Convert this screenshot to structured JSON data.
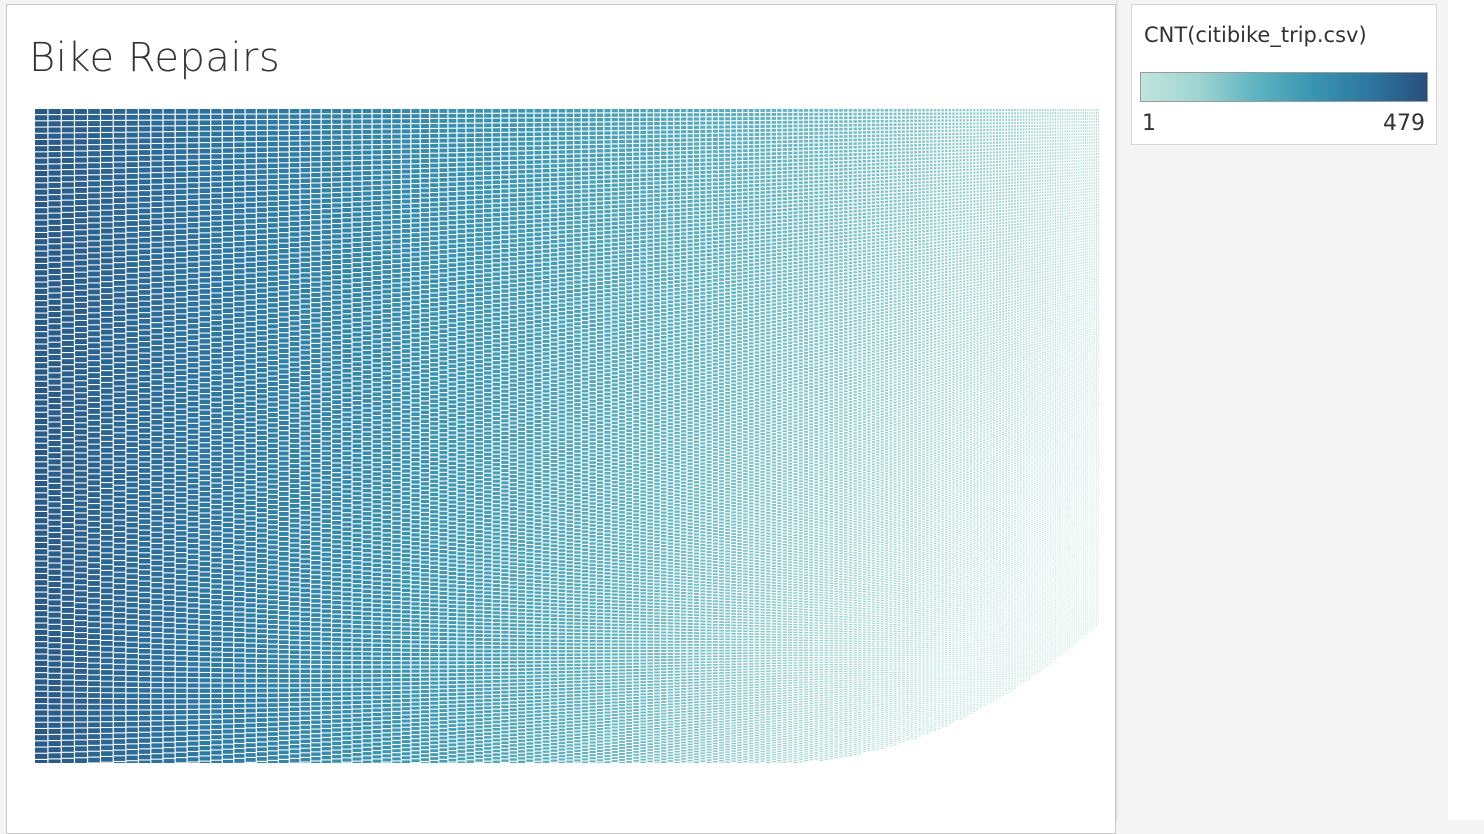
{
  "chart_data": {
    "type": "treemap",
    "title": "Bike Repairs",
    "color_legend": {
      "title": "CNT(citibike_trip.csv)",
      "min_label": "1",
      "max_label": "479",
      "min": 1,
      "max": 479,
      "colors": [
        "#c0e5dc",
        "#9fd4d2",
        "#5fb4c1",
        "#3a95b1",
        "#2d76a0",
        "#2a4f7c"
      ]
    },
    "legend_placement": "top-right"
  }
}
